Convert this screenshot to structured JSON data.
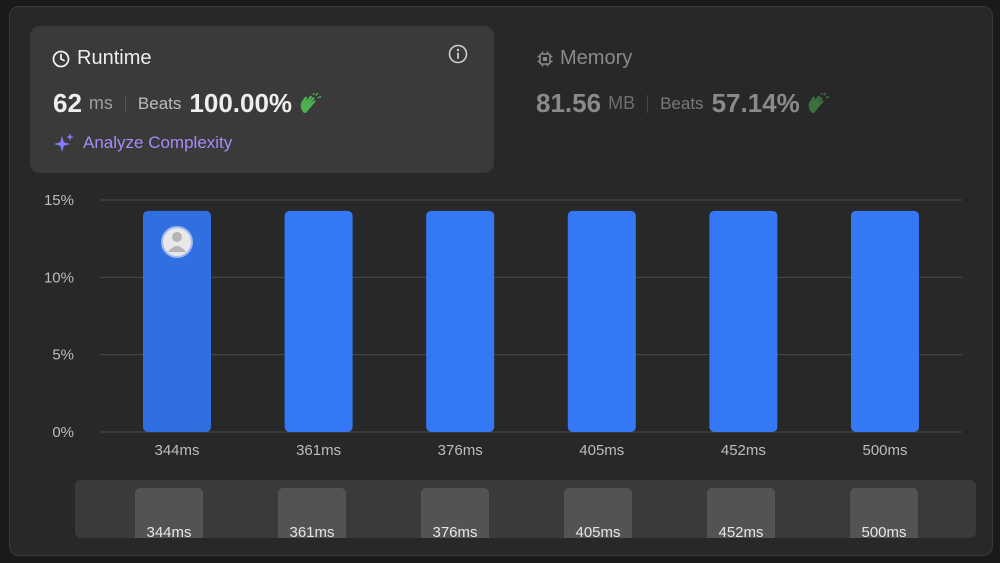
{
  "runtime": {
    "title": "Runtime",
    "value": "62",
    "unit": "ms",
    "beats_label": "Beats",
    "beats_value": "100.00%",
    "analyze_label": "Analyze Complexity"
  },
  "memory": {
    "title": "Memory",
    "value": "81.56",
    "unit": "MB",
    "beats_label": "Beats",
    "beats_value": "57.14%"
  },
  "icons": {
    "clock": "clock-icon",
    "info": "info-icon",
    "chip": "chip-icon",
    "clap": "clap-icon",
    "sparkle": "sparkle-icon",
    "avatar": "avatar"
  },
  "colors": {
    "bar": "#3478f6",
    "bar_selected": "#2f6fe0",
    "accent_purple": "#a78bfa",
    "clap_green": "#4caf50"
  },
  "chart_data": {
    "type": "bar",
    "categories": [
      "344ms",
      "361ms",
      "376ms",
      "405ms",
      "452ms",
      "500ms"
    ],
    "values": [
      14.3,
      14.3,
      14.3,
      14.3,
      14.3,
      14.3
    ],
    "ylim": [
      0,
      15
    ],
    "yticks": [
      "0%",
      "5%",
      "10%",
      "15%"
    ],
    "ytick_values": [
      0,
      5,
      10,
      15
    ],
    "selected_index": 0,
    "grid": true
  },
  "range_selector": {
    "labels": [
      "344ms",
      "361ms",
      "376ms",
      "405ms",
      "452ms",
      "500ms"
    ]
  }
}
